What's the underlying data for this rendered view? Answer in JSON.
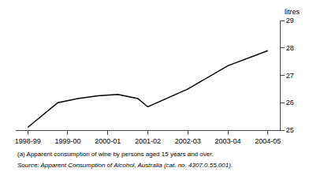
{
  "chart_data": {
    "type": "line",
    "x": [
      0,
      0.75,
      1.25,
      1.75,
      2.25,
      2.75,
      3.0,
      4.0,
      5.0,
      6.0
    ],
    "values": [
      25.1,
      26.0,
      26.15,
      26.25,
      26.3,
      26.15,
      25.85,
      26.5,
      27.35,
      27.9
    ],
    "color": "#000000",
    "xlim": [
      -0.3,
      6.3
    ],
    "xticks": [
      {
        "value": 0,
        "label": "1998-99"
      },
      {
        "value": 1,
        "label": "1999-00"
      },
      {
        "value": 2,
        "label": "2000-01"
      },
      {
        "value": 3,
        "label": "2001-02"
      },
      {
        "value": 4,
        "label": "2002-03"
      },
      {
        "value": 5,
        "label": "2003-04"
      },
      {
        "value": 6,
        "label": "2004-05"
      }
    ],
    "ylim": [
      25,
      29
    ],
    "yticks": [
      25,
      26,
      27,
      28,
      29
    ],
    "ylabel": "litres",
    "annotations": [
      "(a) Apparent consumption of wine by persons aged 15 years and over.",
      "Source: Apparent Consumption of Alcohol, Australia (cat. no. 4307.0.55.001)."
    ],
    "grid": false
  }
}
